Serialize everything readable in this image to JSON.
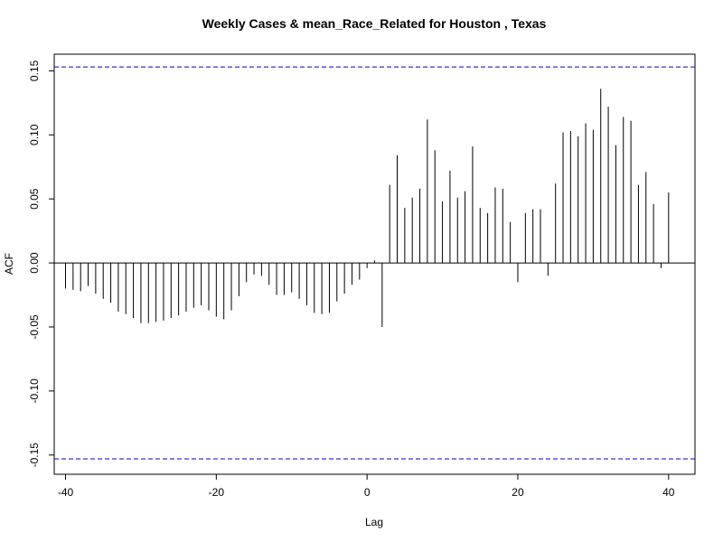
{
  "chart_data": {
    "type": "bar",
    "subtype": "acf-stem",
    "title": "Weekly Cases & mean_Race_Related for Houston , Texas",
    "xlabel": "Lag",
    "ylabel": "ACF",
    "xlim": [
      -41.5,
      43.5
    ],
    "ylim": [
      -0.165,
      0.163
    ],
    "x_ticks": [
      -40,
      -20,
      0,
      20,
      40
    ],
    "x_tick_labels": [
      "-40",
      "-20",
      "0",
      "20",
      "40"
    ],
    "y_ticks": [
      -0.15,
      -0.1,
      -0.05,
      0.0,
      0.05,
      0.1,
      0.15
    ],
    "y_tick_labels": [
      "-0.15",
      "-0.10",
      "-0.05",
      "0.00",
      "0.05",
      "0.10",
      "0.15"
    ],
    "confidence_bounds": [
      0.153,
      -0.153
    ],
    "confidence_color": "#0000cc",
    "bar_color": "#000000",
    "grid": false,
    "lags": [
      -40,
      -39,
      -38,
      -37,
      -36,
      -35,
      -34,
      -33,
      -32,
      -31,
      -30,
      -29,
      -28,
      -27,
      -26,
      -25,
      -24,
      -23,
      -22,
      -21,
      -20,
      -19,
      -18,
      -17,
      -16,
      -15,
      -14,
      -13,
      -12,
      -11,
      -10,
      -9,
      -8,
      -7,
      -6,
      -5,
      -4,
      -3,
      -2,
      -1,
      0,
      1,
      2,
      3,
      4,
      5,
      6,
      7,
      8,
      9,
      10,
      11,
      12,
      13,
      14,
      15,
      16,
      17,
      18,
      19,
      20,
      21,
      22,
      23,
      24,
      25,
      26,
      27,
      28,
      29,
      30,
      31,
      32,
      33,
      34,
      35,
      36,
      37,
      38,
      39,
      40
    ],
    "values": [
      -0.02,
      -0.021,
      -0.022,
      -0.018,
      -0.024,
      -0.028,
      -0.031,
      -0.038,
      -0.04,
      -0.043,
      -0.047,
      -0.047,
      -0.046,
      -0.045,
      -0.043,
      -0.041,
      -0.038,
      -0.035,
      -0.033,
      -0.037,
      -0.042,
      -0.044,
      -0.037,
      -0.026,
      -0.015,
      -0.009,
      -0.01,
      -0.017,
      -0.025,
      -0.025,
      -0.023,
      -0.028,
      -0.033,
      -0.039,
      -0.04,
      -0.039,
      -0.03,
      -0.024,
      -0.017,
      -0.013,
      -0.004,
      0.002,
      -0.05,
      0.061,
      0.084,
      0.043,
      0.051,
      0.058,
      0.112,
      0.088,
      0.048,
      0.072,
      0.051,
      0.056,
      0.091,
      0.043,
      0.039,
      0.059,
      0.058,
      0.032,
      -0.015,
      0.039,
      0.042,
      0.042,
      -0.01,
      0.062,
      0.102,
      0.103,
      0.099,
      0.109,
      0.104,
      0.136,
      0.122,
      0.092,
      0.114,
      0.111,
      0.061,
      0.071,
      0.046,
      -0.004,
      0.055
    ]
  }
}
